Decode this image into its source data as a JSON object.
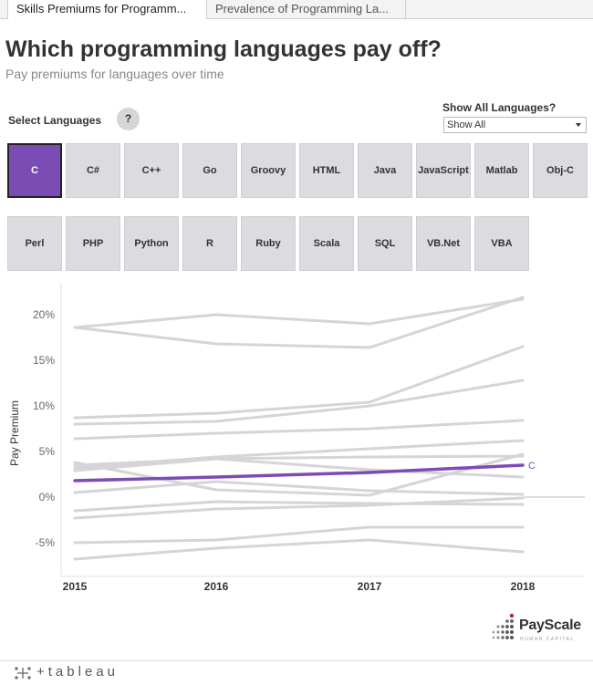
{
  "tabs": [
    {
      "label": "Skills Premiums for Programm..."
    },
    {
      "label": "Prevalence of Programming La..."
    }
  ],
  "title": "Which programming languages pay off?",
  "subtitle": "Pay premiums for languages over time",
  "select_label": "Select Languages",
  "help_label": "?",
  "show_all": {
    "label": "Show All Languages?",
    "value": "Show All"
  },
  "languages": [
    "C",
    "C#",
    "C++",
    "Go",
    "Groovy",
    "HTML",
    "Java",
    "JavaScript",
    "Matlab",
    "Obj-C",
    "Perl",
    "PHP",
    "Python",
    "R",
    "Ruby",
    "Scala",
    "SQL",
    "VB.Net",
    "VBA"
  ],
  "selected_language": "C",
  "colors": {
    "accent": "#7c4cb5",
    "inactive_line": "#d5d4d8",
    "button": "#dcdbdf"
  },
  "chart_data": {
    "type": "line",
    "x": [
      2015,
      2016,
      2017,
      2018
    ],
    "ylabel": "Pay Premium",
    "xlabel": "",
    "ylim": [
      -8.5,
      23
    ],
    "yticks": [
      "20%",
      "15%",
      "10%",
      "5%",
      "0%",
      "-5%"
    ],
    "ytick_values": [
      20,
      15,
      10,
      5,
      0,
      -5
    ],
    "xticks": [
      "2015",
      "2016",
      "2017",
      "2018"
    ],
    "grid": false,
    "highlighted_series": "C",
    "end_label": "C",
    "series": [
      {
        "name": "C",
        "values": [
          1.8,
          2.2,
          2.7,
          3.5
        ],
        "highlight": true
      },
      {
        "values": [
          18.6,
          20.0,
          19.0,
          21.7
        ]
      },
      {
        "values": [
          18.6,
          16.8,
          16.4,
          21.9
        ]
      },
      {
        "values": [
          8.7,
          9.2,
          10.4,
          16.5
        ]
      },
      {
        "values": [
          8.0,
          8.3,
          10.0,
          12.8
        ]
      },
      {
        "values": [
          6.4,
          7.0,
          7.5,
          8.4
        ]
      },
      {
        "values": [
          3.2,
          4.4,
          5.3,
          6.2
        ]
      },
      {
        "values": [
          3.5,
          4.2,
          4.4,
          4.5
        ]
      },
      {
        "values": [
          3.8,
          0.8,
          0.2,
          4.7
        ]
      },
      {
        "values": [
          2.9,
          4.2,
          3.0,
          2.2
        ]
      },
      {
        "values": [
          0.5,
          1.7,
          0.7,
          0.3
        ]
      },
      {
        "values": [
          -1.5,
          -0.5,
          -0.7,
          -0.8
        ]
      },
      {
        "values": [
          -2.3,
          -1.3,
          -0.9,
          -0.1
        ]
      },
      {
        "values": [
          -5.0,
          -4.7,
          -3.3,
          -3.3
        ]
      },
      {
        "values": [
          -6.8,
          -5.6,
          -4.7,
          -6.0
        ]
      }
    ]
  }
}
